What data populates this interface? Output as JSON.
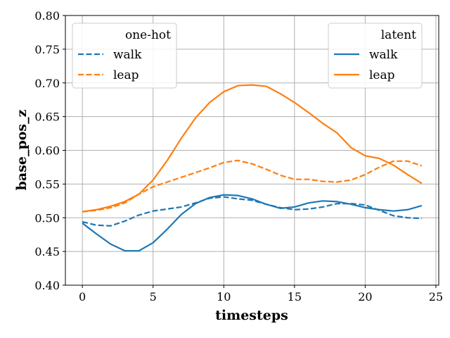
{
  "chart_data": {
    "type": "line",
    "title": "",
    "xlabel": "timesteps",
    "ylabel": "base_pos_z",
    "xlim": [
      -1.2,
      25.2
    ],
    "ylim": [
      0.4,
      0.8
    ],
    "xticks": [
      0,
      5,
      10,
      15,
      20,
      25
    ],
    "yticks": [
      0.4,
      0.45,
      0.5,
      0.55,
      0.6,
      0.65,
      0.7,
      0.75,
      0.8
    ],
    "grid": true,
    "x": [
      0,
      1,
      2,
      3,
      4,
      5,
      6,
      7,
      8,
      9,
      10,
      11,
      12,
      13,
      14,
      15,
      16,
      17,
      18,
      19,
      20,
      21,
      22,
      23,
      24
    ],
    "legends": [
      {
        "title": "one-hot",
        "placement": "top-left",
        "entries": [
          "walk",
          "leap"
        ]
      },
      {
        "title": "latent",
        "placement": "top-right",
        "entries": [
          "walk",
          "leap"
        ]
      }
    ],
    "series": [
      {
        "name": "one-hot walk",
        "group": "one-hot",
        "label": "walk",
        "color": "#1f77b4",
        "style": "dashed",
        "values": [
          0.494,
          0.489,
          0.488,
          0.495,
          0.504,
          0.51,
          0.513,
          0.516,
          0.522,
          0.529,
          0.531,
          0.528,
          0.526,
          0.52,
          0.515,
          0.512,
          0.513,
          0.516,
          0.521,
          0.521,
          0.519,
          0.511,
          0.503,
          0.5,
          0.499
        ]
      },
      {
        "name": "one-hot leap",
        "group": "one-hot",
        "label": "leap",
        "color": "#ff7f0e",
        "style": "dashed",
        "values": [
          0.509,
          0.511,
          0.515,
          0.522,
          0.535,
          0.546,
          0.553,
          0.56,
          0.567,
          0.574,
          0.582,
          0.585,
          0.58,
          0.572,
          0.563,
          0.557,
          0.557,
          0.554,
          0.553,
          0.556,
          0.564,
          0.575,
          0.584,
          0.584,
          0.577
        ]
      },
      {
        "name": "latent walk",
        "group": "latent",
        "label": "walk",
        "color": "#1f77b4",
        "style": "solid",
        "values": [
          0.492,
          0.476,
          0.461,
          0.451,
          0.451,
          0.463,
          0.483,
          0.505,
          0.521,
          0.53,
          0.534,
          0.533,
          0.528,
          0.52,
          0.514,
          0.516,
          0.522,
          0.525,
          0.524,
          0.52,
          0.515,
          0.512,
          0.51,
          0.512,
          0.518
        ]
      },
      {
        "name": "latent leap",
        "group": "latent",
        "label": "leap",
        "color": "#ff7f0e",
        "style": "solid",
        "values": [
          0.509,
          0.512,
          0.517,
          0.524,
          0.535,
          0.556,
          0.585,
          0.618,
          0.648,
          0.671,
          0.687,
          0.696,
          0.697,
          0.695,
          0.684,
          0.671,
          0.656,
          0.64,
          0.626,
          0.604,
          0.592,
          0.588,
          0.578,
          0.564,
          0.551
        ]
      }
    ]
  }
}
